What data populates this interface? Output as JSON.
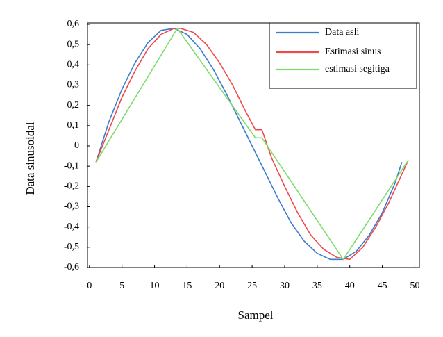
{
  "chart_data": {
    "type": "line",
    "x_label": "Sampel",
    "y_label": "Data sinusoidal",
    "xlim": [
      -0.3,
      50.7
    ],
    "ylim": [
      -0.6,
      0.6
    ],
    "xticks": [
      0,
      5,
      10,
      15,
      20,
      25,
      30,
      35,
      40,
      45,
      50
    ],
    "yticks": [
      {
        "value": 0.6,
        "label": "0,6"
      },
      {
        "value": 0.5,
        "label": "0,5"
      },
      {
        "value": 0.4,
        "label": "0,4"
      },
      {
        "value": 0.3,
        "label": "0,3"
      },
      {
        "value": 0.2,
        "label": "0,2"
      },
      {
        "value": 0.1,
        "label": "0,1"
      },
      0,
      {
        "value": -0.1,
        "label": "-0,1"
      },
      {
        "value": -0.2,
        "label": "-0,2"
      },
      {
        "value": -0.3,
        "label": "-0,3"
      },
      {
        "value": -0.4,
        "label": "-0,4"
      },
      {
        "value": -0.5,
        "label": "-0,5"
      },
      {
        "value": -0.6,
        "label": "-0,6"
      }
    ],
    "legend": "top-right",
    "series": [
      {
        "name": "Data asli",
        "color": "#3a7dcc",
        "x": [
          1,
          3,
          5,
          7,
          9,
          11,
          13,
          15,
          17,
          19,
          21,
          23,
          25,
          27,
          29,
          31,
          33,
          35,
          37,
          39,
          41,
          43,
          45,
          47,
          48
        ],
        "values": [
          -0.08,
          0.12,
          0.28,
          0.41,
          0.51,
          0.57,
          0.58,
          0.55,
          0.48,
          0.38,
          0.26,
          0.13,
          0.0,
          -0.13,
          -0.26,
          -0.38,
          -0.47,
          -0.53,
          -0.56,
          -0.56,
          -0.52,
          -0.44,
          -0.33,
          -0.18,
          -0.08
        ]
      },
      {
        "name": "Estimasi sinus",
        "color": "#f04848",
        "x": [
          1,
          3,
          5,
          7,
          9,
          11,
          13,
          14,
          16,
          18,
          20,
          22,
          24,
          25.5,
          26.5,
          28,
          30,
          32,
          34,
          36,
          38,
          40,
          42,
          44,
          46,
          48,
          49
        ],
        "values": [
          -0.08,
          0.08,
          0.24,
          0.37,
          0.48,
          0.55,
          0.58,
          0.58,
          0.56,
          0.5,
          0.41,
          0.3,
          0.17,
          0.08,
          0.08,
          -0.06,
          -0.2,
          -0.33,
          -0.44,
          -0.51,
          -0.55,
          -0.56,
          -0.5,
          -0.4,
          -0.28,
          -0.14,
          -0.07
        ]
      },
      {
        "name": "estimasi segitiga",
        "color": "#7ddc6a",
        "x": [
          1,
          13.5,
          25.5,
          26.5,
          39,
          49
        ],
        "values": [
          -0.08,
          0.58,
          0.04,
          0.04,
          -0.56,
          -0.07
        ]
      }
    ]
  }
}
